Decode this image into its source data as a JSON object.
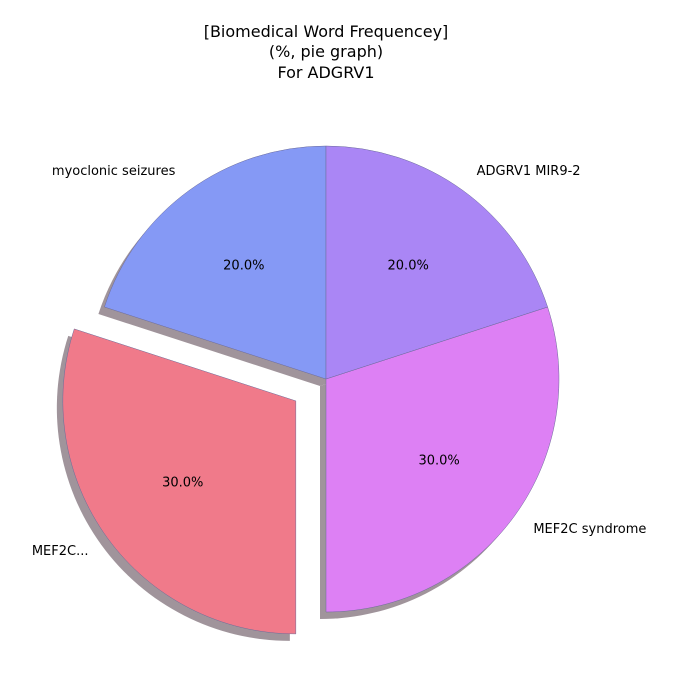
{
  "chart_data": {
    "type": "pie",
    "title_lines": [
      "[Biomedical Word Frequencey]",
      "(%, pie graph)",
      "For ADGRV1"
    ],
    "slices": [
      {
        "label": "myoclonic seizures",
        "value": 20.0,
        "pct_label": "20.0%",
        "color": "#8599f5",
        "exploded": false
      },
      {
        "label": "MEF2C...",
        "value": 30.0,
        "pct_label": "30.0%",
        "color": "#f07a8a",
        "exploded": true
      },
      {
        "label": "MEF2C syndrome",
        "value": 30.0,
        "pct_label": "30.0%",
        "color": "#dd80f4",
        "exploded": false
      },
      {
        "label": "ADGRV1 MIR9-2",
        "value": 20.0,
        "pct_label": "20.0%",
        "color": "#aa86f5",
        "exploded": false
      }
    ],
    "start_angle_deg": 90,
    "direction": "counterclockwise",
    "shadow": true,
    "shadow_color": "#a0949b",
    "edge_color": "#6b6b9a"
  }
}
